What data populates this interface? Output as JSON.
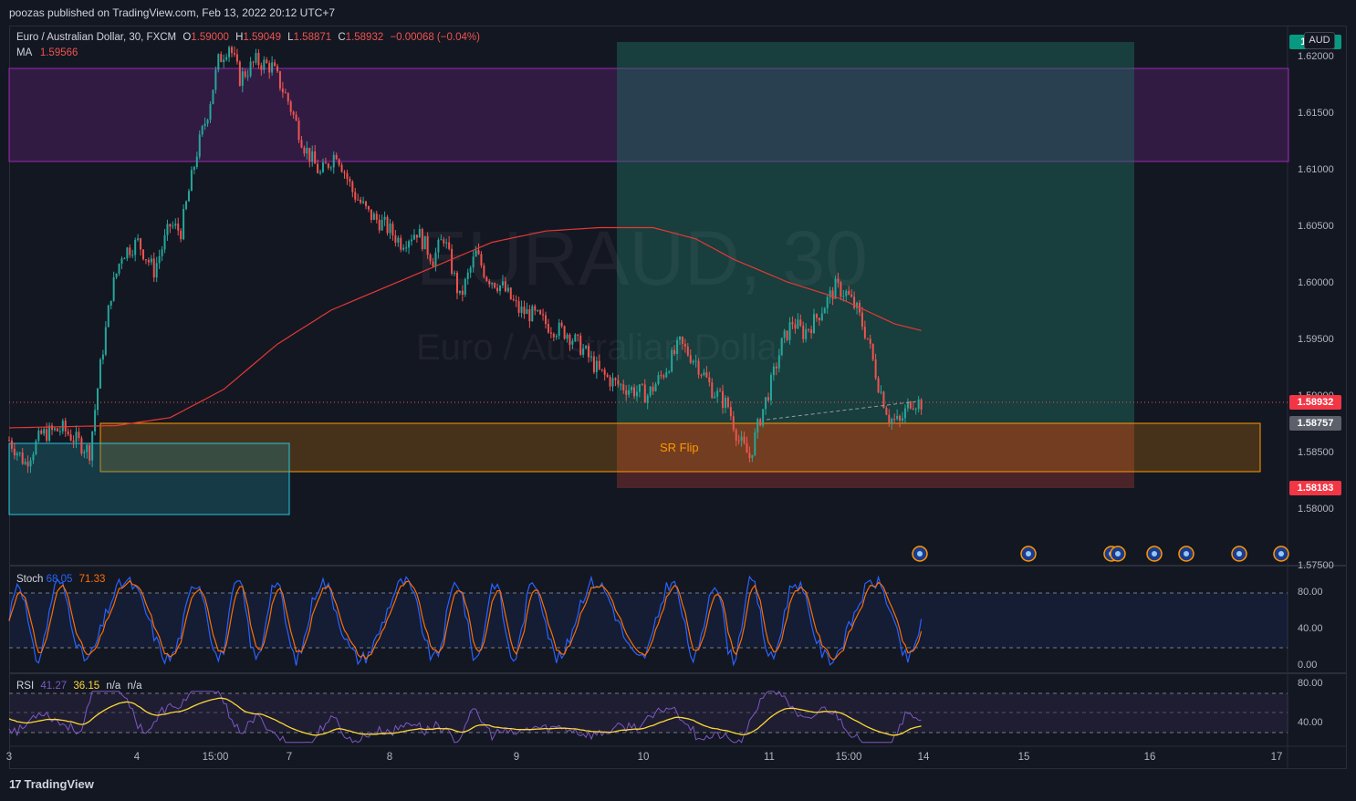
{
  "header": {
    "publisher_line": "poozas published on TradingView.com, Feb 13, 2022 20:12 UTC+7"
  },
  "legend": {
    "symbol": "Euro / Australian Dollar, 30, FXCM",
    "open_label": "O",
    "open": "1.59000",
    "high_label": "H",
    "high": "1.59049",
    "low_label": "L",
    "low": "1.58871",
    "close_label": "C",
    "close": "1.58932",
    "change": "−0.00068 (−0.04%)",
    "ma_label": "MA",
    "ma_value": "1.59566"
  },
  "watermark": {
    "ticker": "EURAUD, 30",
    "name": "Euro / Australian Dollar"
  },
  "currency_badge": "AUD",
  "annotation": {
    "sr_flip": "SR Flip"
  },
  "price_tags": {
    "current": "1.58932",
    "entry": "1.58757",
    "stop": "1.58183",
    "target_partial": "1.6…3"
  },
  "stoch": {
    "label": "Stoch",
    "k": "68.05",
    "d": "71.33"
  },
  "rsi": {
    "label": "RSI",
    "value": "41.27",
    "ma": "36.15",
    "extra1": "n/a",
    "extra2": "n/a"
  },
  "footer": {
    "brand": "TradingView",
    "logo_mark": "17"
  },
  "colors": {
    "background": "#131722",
    "up": "#26a69a",
    "down": "#ef5350",
    "ma": "#e53935",
    "stoch_k": "#2962ff",
    "stoch_d": "#ff6d00",
    "rsi": "#7e57c2",
    "rsi_ma": "#fdd835",
    "profit_zone": "#1f6f5f",
    "loss_zone": "#7a3030",
    "resistance_zone": "#4a1f5c",
    "sr_zone": "#ff9800"
  },
  "chart_data": [
    {
      "type": "candlestick",
      "title": "Euro / Australian Dollar, 30, FXCM",
      "y_ticks": [
        "1.62000",
        "1.61500",
        "1.61000",
        "1.60500",
        "1.60000",
        "1.59500",
        "1.59000",
        "1.58500",
        "1.58000",
        "1.57500"
      ],
      "ylim": [
        1.575,
        1.622
      ],
      "x_ticks": [
        "3",
        "4",
        "15:00",
        "7",
        "8",
        "9",
        "10",
        "11",
        "15:00",
        "14",
        "15",
        "16",
        "17"
      ],
      "close_path": [
        [
          0,
          1.586
        ],
        [
          6,
          1.584
        ],
        [
          12,
          1.5865
        ],
        [
          20,
          1.587
        ],
        [
          26,
          1.5858
        ],
        [
          30,
          1.585
        ],
        [
          34,
          1.5925
        ],
        [
          38,
          1.599
        ],
        [
          42,
          1.6025
        ],
        [
          48,
          1.6035
        ],
        [
          54,
          1.601
        ],
        [
          60,
          1.605
        ],
        [
          64,
          1.6045
        ],
        [
          70,
          1.6115
        ],
        [
          74,
          1.615
        ],
        [
          78,
          1.6195
        ],
        [
          82,
          1.621
        ],
        [
          86,
          1.618
        ],
        [
          92,
          1.6195
        ],
        [
          98,
          1.619
        ],
        [
          104,
          1.616
        ],
        [
          110,
          1.612
        ],
        [
          116,
          1.6095
        ],
        [
          122,
          1.6115
        ],
        [
          128,
          1.608
        ],
        [
          134,
          1.606
        ],
        [
          140,
          1.605
        ],
        [
          146,
          1.6035
        ],
        [
          152,
          1.6045
        ],
        [
          158,
          1.602
        ],
        [
          162,
          1.604
        ],
        [
          168,
          1.5985
        ],
        [
          174,
          1.6025
        ],
        [
          178,
          1.6005
        ],
        [
          184,
          1.5995
        ],
        [
          190,
          1.5975
        ],
        [
          196,
          1.597
        ],
        [
          202,
          1.596
        ],
        [
          208,
          1.5955
        ],
        [
          214,
          1.594
        ],
        [
          220,
          1.592
        ],
        [
          226,
          1.591
        ],
        [
          232,
          1.5905
        ],
        [
          238,
          1.59
        ],
        [
          244,
          1.592
        ],
        [
          250,
          1.5945
        ],
        [
          256,
          1.593
        ],
        [
          262,
          1.5905
        ],
        [
          268,
          1.589
        ],
        [
          272,
          1.586
        ],
        [
          276,
          1.5845
        ],
        [
          280,
          1.588
        ],
        [
          284,
          1.591
        ],
        [
          288,
          1.5945
        ],
        [
          292,
          1.5965
        ],
        [
          296,
          1.5955
        ],
        [
          300,
          1.5965
        ],
        [
          304,
          1.598
        ],
        [
          308,
          1.5995
        ],
        [
          312,
          1.599
        ],
        [
          316,
          1.5975
        ],
        [
          320,
          1.595
        ],
        [
          324,
          1.591
        ],
        [
          328,
          1.588
        ],
        [
          332,
          1.5875
        ],
        [
          336,
          1.5895
        ],
        [
          340,
          1.5893
        ]
      ],
      "ma_values": {
        "label": "MA",
        "last": 1.59566,
        "path": [
          [
            0,
            1.5871
          ],
          [
            40,
            1.5873
          ],
          [
            60,
            1.588
          ],
          [
            80,
            1.5905
          ],
          [
            100,
            1.5945
          ],
          [
            120,
            1.5975
          ],
          [
            140,
            1.5995
          ],
          [
            160,
            1.6015
          ],
          [
            180,
            1.6035
          ],
          [
            200,
            1.6045
          ],
          [
            220,
            1.6048
          ],
          [
            240,
            1.6048
          ],
          [
            256,
            1.6038
          ],
          [
            270,
            1.602
          ],
          [
            290,
            1.6
          ],
          [
            310,
            1.5985
          ],
          [
            330,
            1.5963
          ],
          [
            340,
            1.5957
          ]
        ]
      },
      "zones": [
        {
          "name": "resistance",
          "from": 1.6106,
          "to": 1.619
        },
        {
          "name": "profit",
          "from": 1.58757,
          "to": 1.6213
        },
        {
          "name": "loss",
          "from": 1.58183,
          "to": 1.58757
        },
        {
          "name": "sr_flip",
          "from": 1.583,
          "to": 1.5875
        },
        {
          "name": "demand",
          "from": 1.5794,
          "to": 1.5858
        }
      ]
    },
    {
      "type": "line",
      "title": "Stoch",
      "ylim": [
        0,
        100
      ],
      "y_ticks": [
        "80.00",
        "40.00",
        "0.00"
      ],
      "series": [
        {
          "name": "K",
          "last": 68.05
        },
        {
          "name": "D",
          "last": 71.33
        }
      ]
    },
    {
      "type": "line",
      "title": "RSI",
      "ylim": [
        25,
        85
      ],
      "y_ticks": [
        "80.00",
        "40.00"
      ],
      "series": [
        {
          "name": "RSI",
          "last": 41.27
        },
        {
          "name": "RSI MA",
          "last": 36.15
        }
      ]
    }
  ]
}
